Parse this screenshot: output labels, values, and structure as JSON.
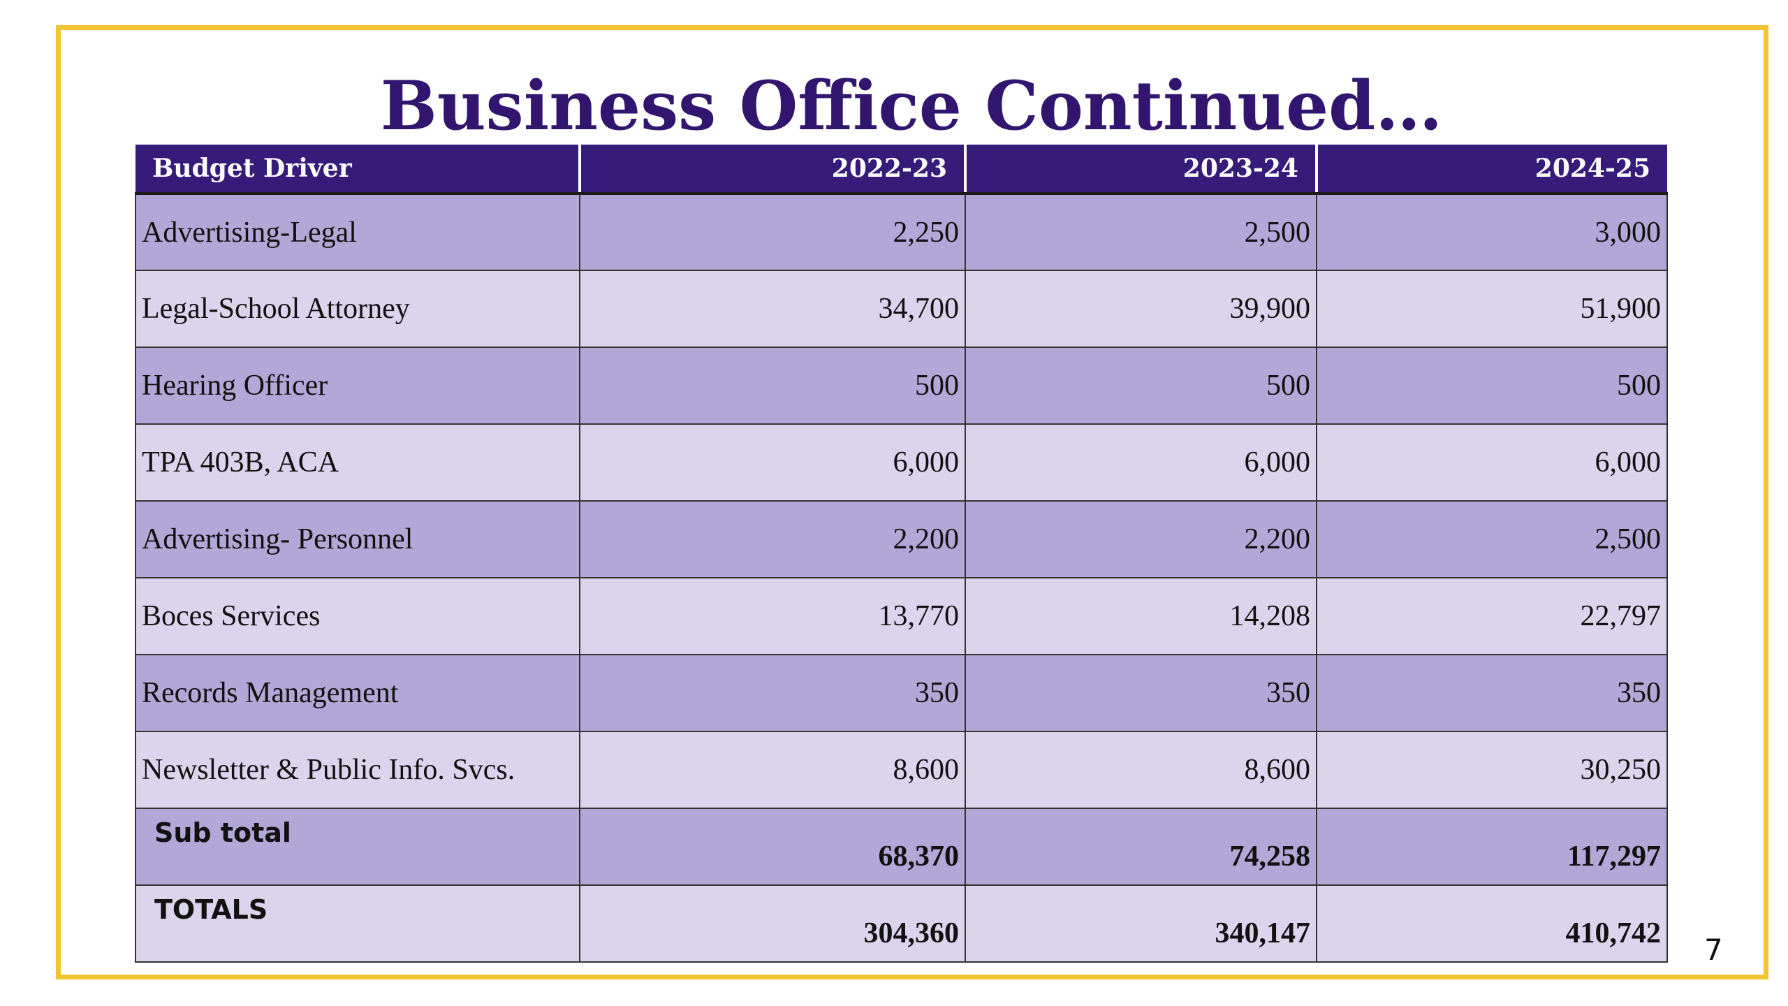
{
  "slide": {
    "title": "Business Office Continued…",
    "page_number": "7"
  },
  "table": {
    "headers": [
      "Budget Driver",
      "2022-23",
      "2023-24",
      "2024-25"
    ],
    "rows": [
      {
        "label": "Advertising-Legal",
        "v1": "2,250",
        "v2": "2,500",
        "v3": "3,000"
      },
      {
        "label": "Legal-School Attorney",
        "v1": "34,700",
        "v2": "39,900",
        "v3": "51,900"
      },
      {
        "label": "Hearing Officer",
        "v1": "500",
        "v2": "500",
        "v3": "500"
      },
      {
        "label": "TPA 403B, ACA",
        "v1": "6,000",
        "v2": "6,000",
        "v3": "6,000"
      },
      {
        "label": "Advertising- Personnel",
        "v1": "2,200",
        "v2": "2,200",
        "v3": "2,500"
      },
      {
        "label": "Boces Services",
        "v1": "13,770",
        "v2": "14,208",
        "v3": "22,797"
      },
      {
        "label": "Records Management",
        "v1": "350",
        "v2": "350",
        "v3": "350"
      },
      {
        "label": "Newsletter & Public Info. Svcs.",
        "v1": "8,600",
        "v2": "8,600",
        "v3": "30,250"
      }
    ],
    "subtotal": {
      "label": "Sub total",
      "v1": "68,370",
      "v2": "74,258",
      "v3": "117,297"
    },
    "totals": {
      "label": "TOTALS",
      "v1": "304,360",
      "v2": "340,147",
      "v3": "410,742"
    }
  },
  "colors": {
    "frame_border": "#f2c434",
    "title_text": "#32156e",
    "header_bg": "#361b7a",
    "row_dark": "#b2a7d6",
    "row_light": "#dcd4ec"
  }
}
